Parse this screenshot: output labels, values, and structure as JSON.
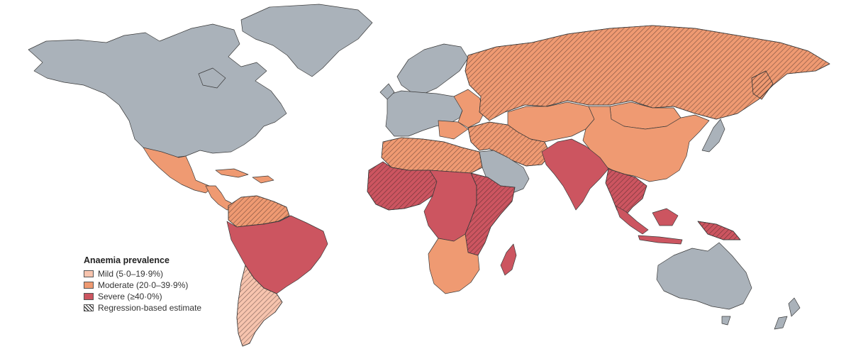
{
  "legend": {
    "title": "Anaemia prevalence",
    "items": [
      {
        "key": "mild",
        "label": "Mild (5·0–19·9%)",
        "color": "#f7c4ae"
      },
      {
        "key": "moderate",
        "label": "Moderate (20·0–39·9%)",
        "color": "#ef9a72"
      },
      {
        "key": "severe",
        "label": "Severe (≥40·0%)",
        "color": "#cc5560"
      },
      {
        "key": "regression",
        "label": "Regression-based estimate",
        "pattern": "diagonal-hatch"
      }
    ]
  },
  "colors": {
    "no_data": "#aab2ba",
    "mild": "#f7c4ae",
    "moderate": "#ef9a72",
    "severe": "#cc5560",
    "border": "#3a3a3a"
  },
  "regions": [
    {
      "name": "greenland",
      "category": "no_data"
    },
    {
      "name": "north-america",
      "category": "no_data"
    },
    {
      "name": "mexico",
      "category": "moderate"
    },
    {
      "name": "central-america",
      "category": "moderate"
    },
    {
      "name": "caribbean",
      "category": "moderate"
    },
    {
      "name": "venezuela-colombia",
      "category": "moderate",
      "regression": true
    },
    {
      "name": "brazil-andes",
      "category": "severe"
    },
    {
      "name": "argentina-chile",
      "category": "mild",
      "regression": true
    },
    {
      "name": "western-europe",
      "category": "no_data"
    },
    {
      "name": "scandinavia",
      "category": "no_data"
    },
    {
      "name": "eastern-europe",
      "category": "moderate"
    },
    {
      "name": "russia",
      "category": "moderate",
      "regression": true
    },
    {
      "name": "central-asia",
      "category": "moderate"
    },
    {
      "name": "china",
      "category": "moderate"
    },
    {
      "name": "mongolia",
      "category": "moderate"
    },
    {
      "name": "japan",
      "category": "no_data"
    },
    {
      "name": "middle-east",
      "category": "moderate",
      "regression": true
    },
    {
      "name": "arabian-peninsula",
      "category": "no_data"
    },
    {
      "name": "north-africa",
      "category": "moderate",
      "regression": true
    },
    {
      "name": "west-africa",
      "category": "severe",
      "regression": true
    },
    {
      "name": "central-africa",
      "category": "severe"
    },
    {
      "name": "east-africa",
      "category": "severe",
      "regression": true
    },
    {
      "name": "southern-africa",
      "category": "moderate"
    },
    {
      "name": "madagascar",
      "category": "severe"
    },
    {
      "name": "south-asia",
      "category": "severe"
    },
    {
      "name": "southeast-asia",
      "category": "severe",
      "regression": true
    },
    {
      "name": "indonesia",
      "category": "severe"
    },
    {
      "name": "papua",
      "category": "severe",
      "regression": true
    },
    {
      "name": "australia",
      "category": "no_data"
    },
    {
      "name": "new-zealand",
      "category": "no_data"
    }
  ]
}
